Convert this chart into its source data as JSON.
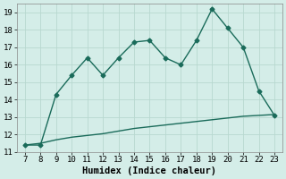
{
  "xlabel": "Humidex (Indice chaleur)",
  "x_values": [
    7,
    8,
    9,
    10,
    11,
    12,
    13,
    14,
    15,
    16,
    17,
    18,
    19,
    20,
    21,
    22,
    23
  ],
  "upper_y": [
    11.4,
    11.4,
    14.3,
    15.4,
    16.4,
    15.4,
    16.4,
    17.3,
    17.4,
    16.4,
    16.0,
    17.4,
    19.2,
    18.1,
    17.0,
    14.5,
    13.1
  ],
  "lower_y": [
    11.4,
    11.5,
    11.7,
    11.85,
    11.95,
    12.05,
    12.2,
    12.35,
    12.45,
    12.55,
    12.65,
    12.75,
    12.85,
    12.95,
    13.05,
    13.1,
    13.15
  ],
  "line_color": "#1a6b5a",
  "bg_color": "#d4ede8",
  "grid_color": "#b8d8d0",
  "ylim": [
    11,
    19.5
  ],
  "xlim": [
    6.5,
    23.5
  ],
  "yticks": [
    11,
    12,
    13,
    14,
    15,
    16,
    17,
    18,
    19
  ],
  "xticks": [
    7,
    8,
    9,
    10,
    11,
    12,
    13,
    14,
    15,
    16,
    17,
    18,
    19,
    20,
    21,
    22,
    23
  ],
  "marker": "D",
  "markersize": 2.5,
  "linewidth": 1.0,
  "tick_fontsize": 6.5,
  "xlabel_fontsize": 7.5
}
